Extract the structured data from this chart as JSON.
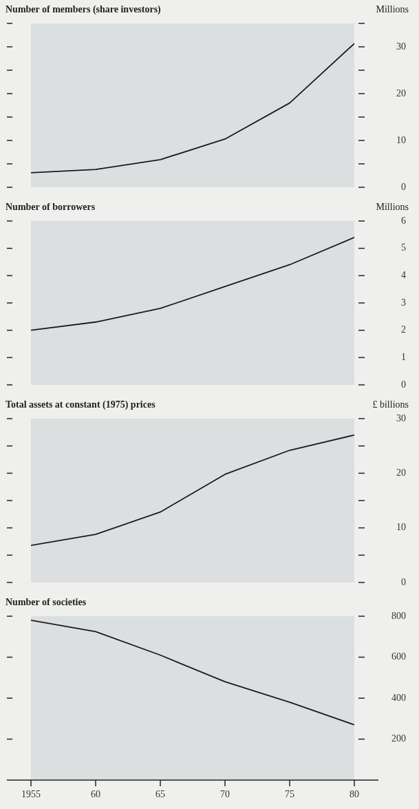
{
  "chart_data": [
    {
      "type": "line",
      "title": "Number of members (share investors)",
      "ylabel": "Millions",
      "color": "#1a1a1a",
      "x": [
        1955,
        1960,
        1965,
        1970,
        1975,
        1980
      ],
      "values": [
        3.1,
        3.8,
        5.9,
        10.3,
        18,
        30.7
      ],
      "xlim": [
        1955,
        1980
      ],
      "ylim": [
        0,
        35
      ],
      "yticks": [
        0,
        {
          "value": 5,
          "label": null
        },
        10,
        {
          "value": 15,
          "label": null
        },
        20,
        {
          "value": 25,
          "label": null
        },
        30,
        {
          "value": 35,
          "label": null
        }
      ],
      "tick_labels": "y"
    },
    {
      "type": "line",
      "title": "Number of borrowers",
      "ylabel": "Millions",
      "color": "#1a1a1a",
      "x": [
        1955,
        1960,
        1965,
        1970,
        1975,
        1980
      ],
      "values": [
        2.0,
        2.3,
        2.8,
        3.6,
        4.4,
        5.4
      ],
      "xlim": [
        1955,
        1980
      ],
      "ylim": [
        0,
        6
      ],
      "yticks": [
        0,
        1,
        2,
        3,
        4,
        5,
        6
      ],
      "tick_labels": "y"
    },
    {
      "type": "line",
      "title": "Total assets at constant (1975) prices",
      "ylabel": "£ billions",
      "color": "#1a1a1a",
      "x": [
        1955,
        1960,
        1965,
        1970,
        1975,
        1980
      ],
      "values": [
        6.8,
        8.8,
        12.9,
        19.8,
        24.2,
        27
      ],
      "xlim": [
        1955,
        1980
      ],
      "ylim": [
        0,
        30
      ],
      "yticks": [
        0,
        {
          "value": 5,
          "label": null
        },
        10,
        {
          "value": 15,
          "label": null
        },
        20,
        {
          "value": 25,
          "label": null
        },
        30
      ],
      "tick_labels": "y"
    },
    {
      "type": "line",
      "title": "Number of societies",
      "color": "#1a1a1a",
      "x": [
        1955,
        1960,
        1965,
        1970,
        1975,
        1980
      ],
      "values": [
        780,
        725,
        610,
        480,
        380,
        270
      ],
      "xlim": [
        1955,
        1980
      ],
      "xticks": [
        1955,
        {
          "value": 1960,
          "label": "60"
        },
        {
          "value": 1965,
          "label": "65"
        },
        {
          "value": 1970,
          "label": "70"
        },
        {
          "value": 1975,
          "label": "75"
        },
        {
          "value": 1980,
          "label": "80"
        }
      ],
      "ylim": [
        0,
        800
      ],
      "yticks": [
        200,
        400,
        600,
        800
      ]
    }
  ]
}
